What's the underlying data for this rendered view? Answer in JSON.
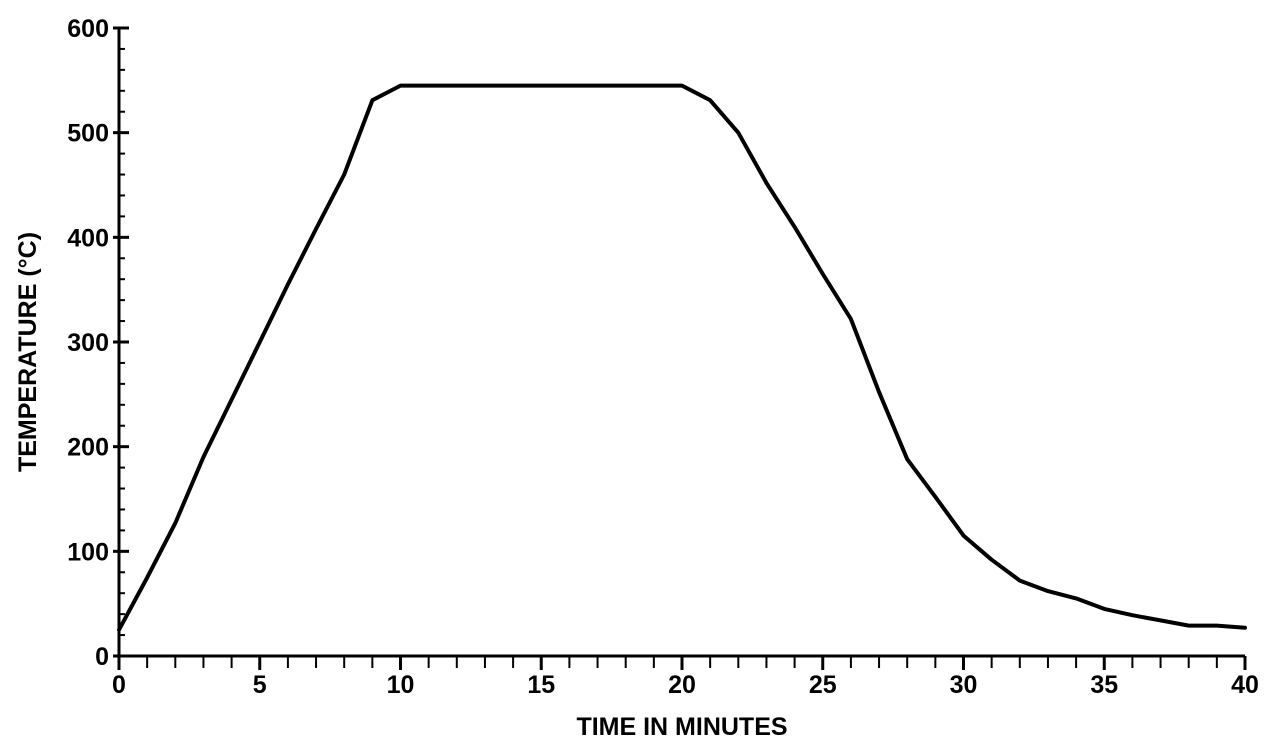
{
  "chart_data": {
    "type": "line",
    "title": "",
    "xlabel": "TIME IN MINUTES",
    "ylabel": "TEMPERATURE (°C)",
    "xlim": [
      0,
      40
    ],
    "ylim": [
      0,
      600
    ],
    "x_major_ticks": [
      0,
      5,
      10,
      15,
      20,
      25,
      30,
      35,
      40
    ],
    "x_tick_labels": [
      "0",
      "5",
      "10",
      "15",
      "20",
      "25",
      "30",
      "35",
      "40"
    ],
    "x_minor_step": 1,
    "y_major_ticks": [
      0,
      100,
      200,
      300,
      400,
      500,
      600
    ],
    "y_tick_labels": [
      "0",
      "100",
      "200",
      "300",
      "400",
      "500",
      "600"
    ],
    "y_minor_step": 20,
    "grid": false,
    "legend": "none",
    "line_color": "#000000",
    "series": [
      {
        "x": [
          0,
          1,
          2,
          3,
          4,
          5,
          6,
          7,
          8,
          9,
          10,
          11,
          12,
          13,
          14,
          15,
          16,
          17,
          18,
          19,
          20,
          21,
          22,
          23,
          24,
          25,
          26,
          27,
          28,
          29,
          30,
          31,
          32,
          33,
          34,
          35,
          36,
          37,
          38,
          39,
          40
        ],
        "y": [
          25,
          75,
          127,
          190,
          245,
          300,
          355,
          408,
          460,
          531,
          545,
          545,
          545,
          545,
          545,
          545,
          545,
          545,
          545,
          545,
          545,
          531,
          500,
          452,
          410,
          365,
          322,
          252,
          188,
          152,
          115,
          92,
          72,
          62,
          55,
          45,
          39,
          34,
          29,
          29,
          27
        ]
      }
    ]
  }
}
